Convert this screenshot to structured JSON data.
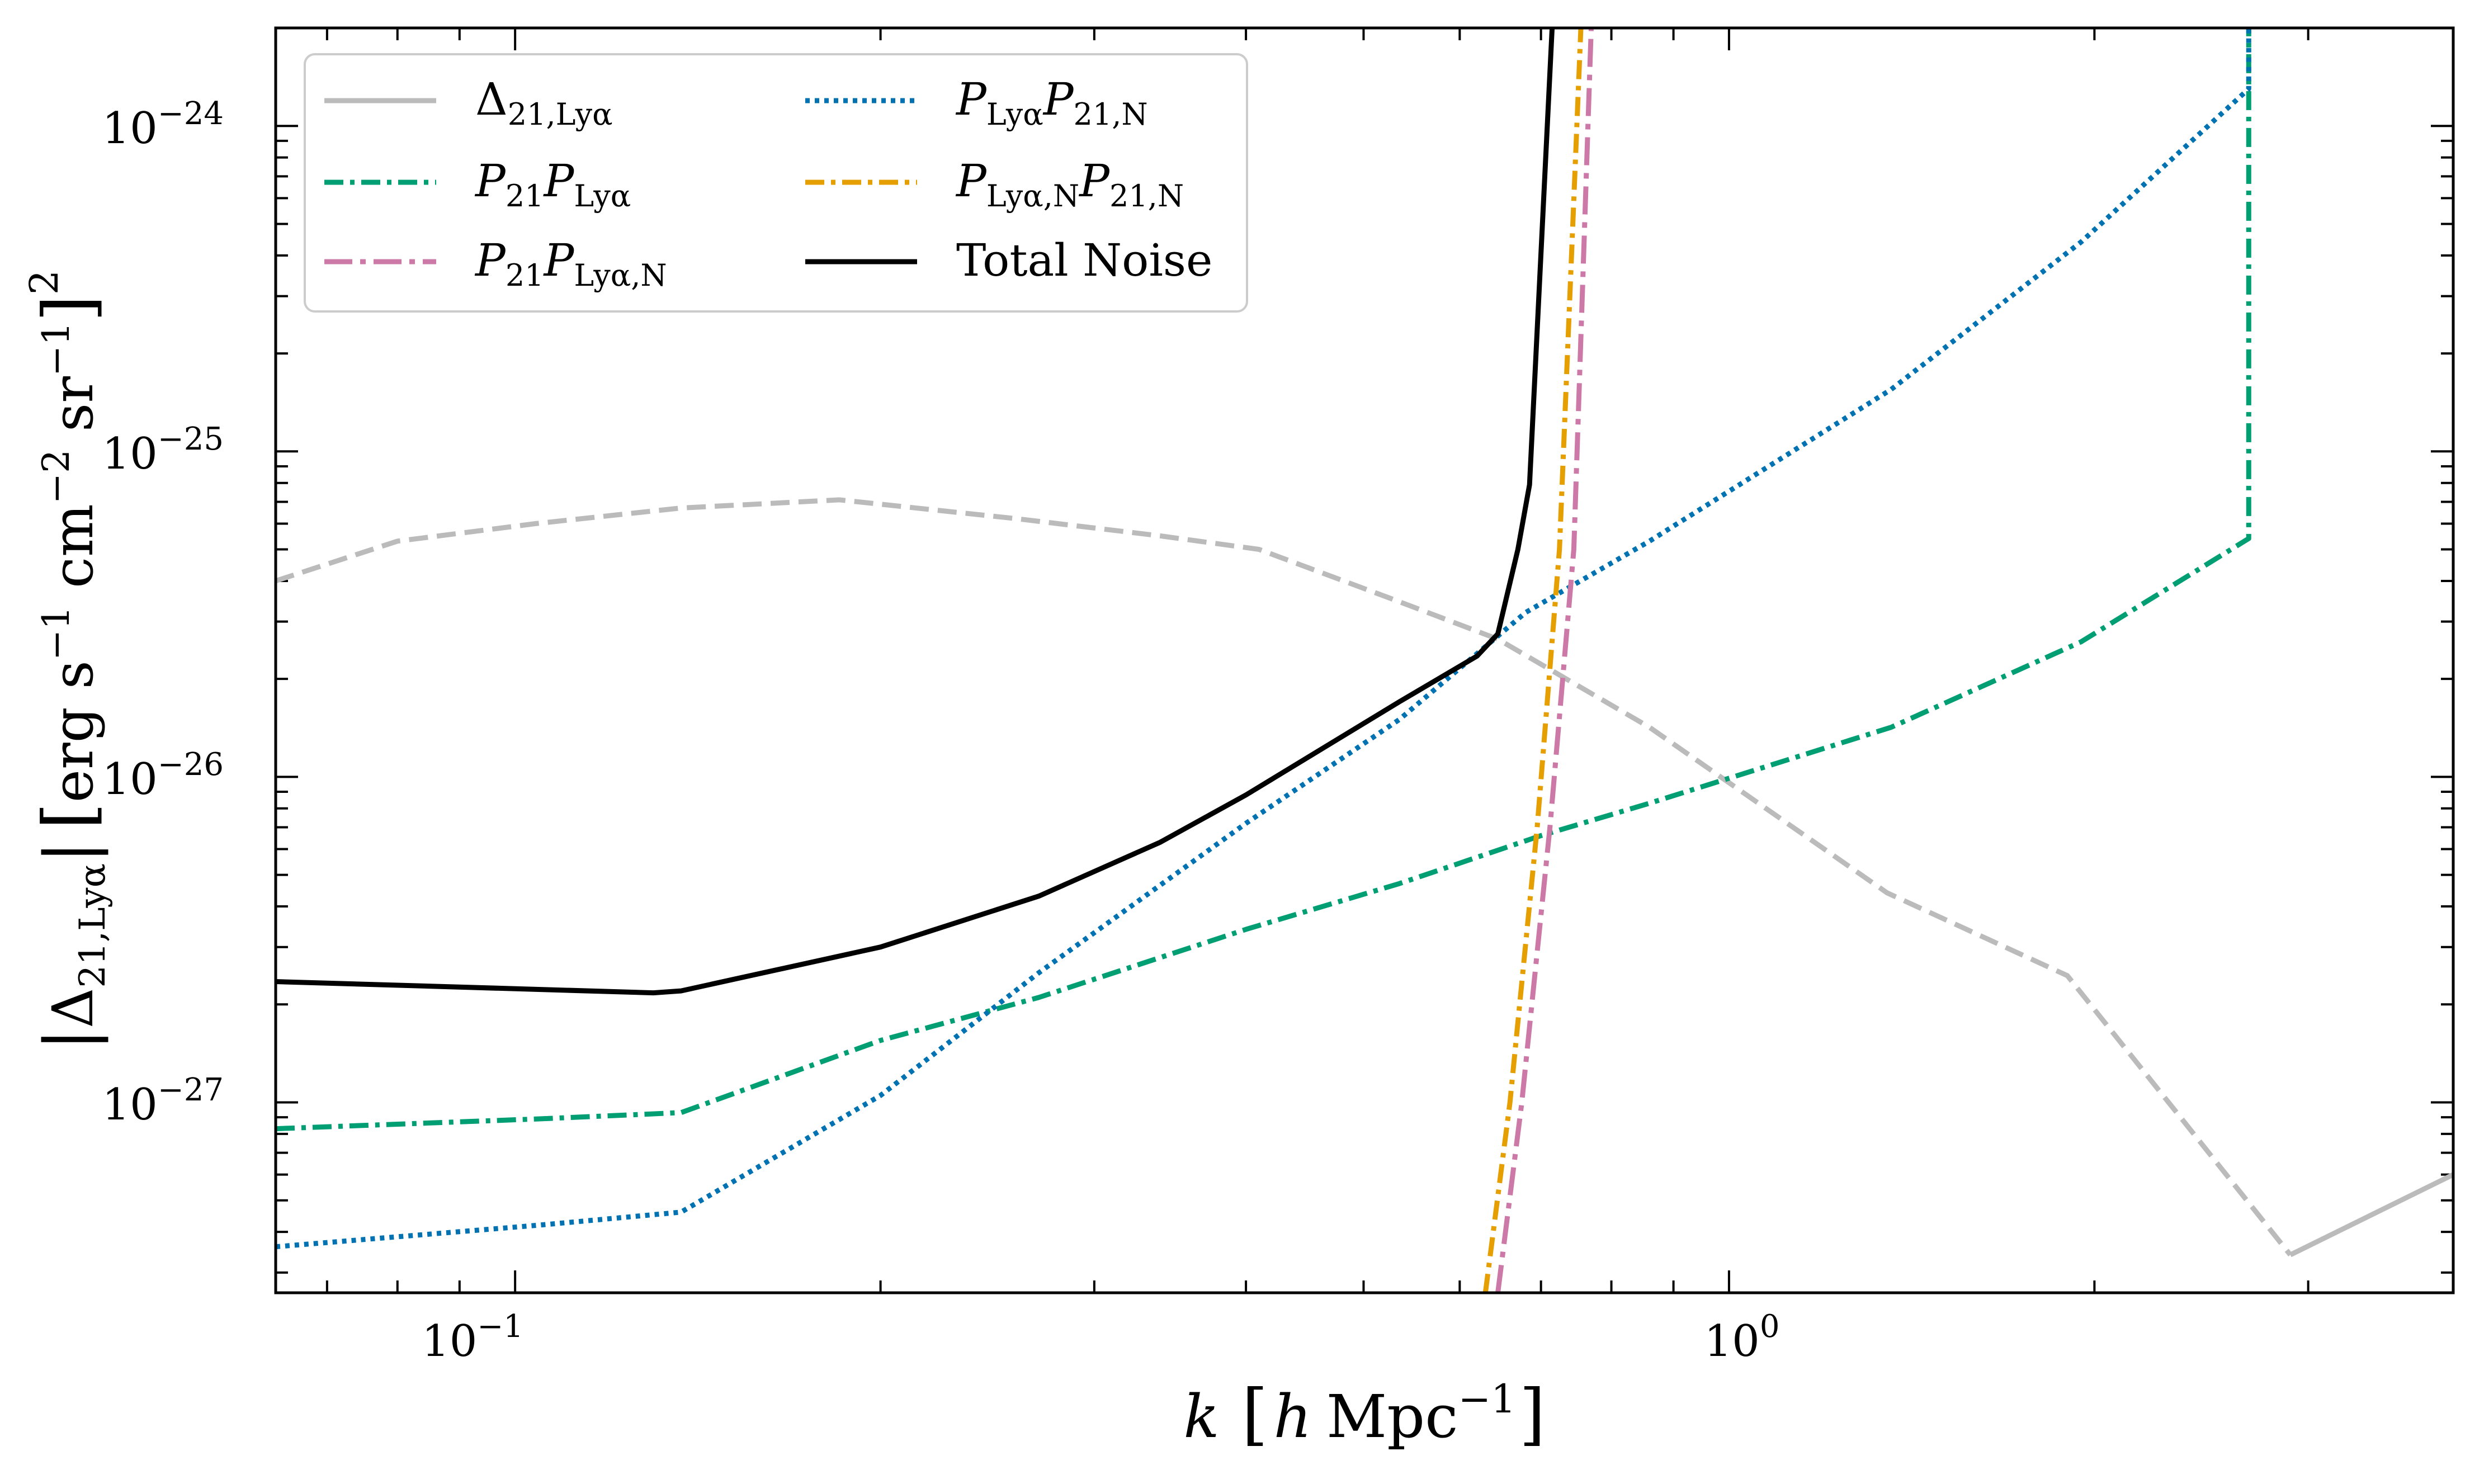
{
  "chart_data": {
    "type": "line",
    "xscale": "log",
    "yscale": "log",
    "xlim": [
      0.0635,
      3.95
    ],
    "ylim": [
      2.6e-28,
      2e-24
    ],
    "xlabel": "k [h Mpc^-1]",
    "ylabel": "|Δ21,Lyα| [erg s^-1 cm^-2 sr^-1]^2",
    "x_tick_labels": [
      {
        "value": 0.1,
        "base": "10",
        "exp": "−1"
      },
      {
        "value": 1.0,
        "base": "10",
        "exp": "0"
      }
    ],
    "y_tick_labels": [
      {
        "value": 1e-27,
        "base": "10",
        "exp": "−27"
      },
      {
        "value": 1e-26,
        "base": "10",
        "exp": "−26"
      },
      {
        "value": 1e-25,
        "base": "10",
        "exp": "−25"
      },
      {
        "value": 1e-24,
        "base": "10",
        "exp": "−24"
      }
    ],
    "legend_position": "top-left",
    "legend_columns": 2,
    "series": [
      {
        "name": "Δ21,Lyα",
        "key": "delta21lya",
        "color": "#bbbbbb",
        "dash": "solid",
        "segments": [
          {
            "dash": "dashed",
            "x": [
              0.0635,
              0.08,
              0.104,
              0.137,
              0.185,
              0.26,
              0.34,
              0.41,
              0.53,
              0.645,
              0.86,
              1.35,
              1.9,
              2.9
            ],
            "y": [
              4e-26,
              5.3e-26,
              6e-26,
              6.7e-26,
              7.1e-26,
              6.2e-26,
              5.5e-26,
              5e-26,
              3.5e-26,
              2.65e-26,
              1.42e-26,
              4.4e-27,
              2.45e-27,
              3.4e-28
            ]
          },
          {
            "dash": "solid",
            "x": [
              2.9,
              3.95
            ],
            "y": [
              3.4e-28,
              6e-28
            ]
          }
        ]
      },
      {
        "name": "P21PLyα",
        "key": "p21plya",
        "color": "#009e73",
        "dash": "dashdot",
        "x": [
          0.0635,
          0.105,
          0.137,
          0.2,
          0.27,
          0.4,
          0.535,
          0.7,
          0.86,
          1.36,
          1.95,
          2.68,
          2.68
        ],
        "y": [
          8.3e-28,
          8.9e-28,
          9.3e-28,
          1.55e-27,
          2.1e-27,
          3.4e-27,
          4.7e-27,
          6.6e-27,
          8.3e-27,
          1.42e-26,
          2.6e-26,
          5.4e-26,
          2e-24
        ]
      },
      {
        "name": "P21PLyα,N",
        "key": "p21plyan",
        "color": "#cc79a7",
        "dash": "longdashdot",
        "x": [
          0.645,
          0.675,
          0.712,
          0.745,
          0.77
        ],
        "y": [
          2.6e-28,
          1e-27,
          7e-27,
          5e-26,
          2e-24
        ]
      },
      {
        "name": "PLyαP21,N",
        "key": "plyap21n",
        "color": "#0072b2",
        "dash": "dotted",
        "x": [
          0.0635,
          0.105,
          0.137,
          0.2,
          0.27,
          0.4,
          0.535,
          0.68,
          0.86,
          1.36,
          1.95,
          2.68,
          2.68
        ],
        "y": [
          3.6e-28,
          4.2e-28,
          4.6e-28,
          1.05e-27,
          2.5e-27,
          7.2e-27,
          1.5e-26,
          3.2e-26,
          5.3e-26,
          1.55e-25,
          4.4e-25,
          1.3e-24,
          2e-24
        ]
      },
      {
        "name": "PLyα,NP21,N",
        "key": "plyanp21n",
        "color": "#e69f00",
        "dash": "dashdot",
        "x": [
          0.63,
          0.66,
          0.695,
          0.725,
          0.755
        ],
        "y": [
          2.6e-28,
          1e-27,
          7e-27,
          5e-26,
          2e-24
        ]
      },
      {
        "name": "Total Noise",
        "key": "total",
        "color": "#000000",
        "dash": "solid",
        "x": [
          0.0635,
          0.13,
          0.137,
          0.2,
          0.27,
          0.34,
          0.4,
          0.535,
          0.62,
          0.645,
          0.67,
          0.685,
          0.715
        ],
        "y": [
          2.35e-27,
          2.17e-27,
          2.2e-27,
          3e-27,
          4.3e-27,
          6.3e-27,
          8.8e-27,
          1.7e-26,
          2.35e-26,
          2.75e-26,
          5e-26,
          7.9e-26,
          2e-24
        ]
      }
    ]
  },
  "legend": {
    "col1": [
      {
        "key": "delta21lya",
        "main": "Δ",
        "sub": "21,Lyα",
        "main2": "",
        "sub2": ""
      },
      {
        "key": "p21plya",
        "main": "P",
        "sub": "21",
        "main2": "P",
        "sub2": "Lyα"
      },
      {
        "key": "p21plyan",
        "main": "P",
        "sub": "21",
        "main2": "P",
        "sub2": "Lyα,N"
      }
    ],
    "col2": [
      {
        "key": "plyap21n",
        "main": "P",
        "sub": "Lyα",
        "main2": "P",
        "sub2": "21,N"
      },
      {
        "key": "plyanp21n",
        "main": "P",
        "sub": "Lyα,N",
        "main2": "P",
        "sub2": "21,N"
      },
      {
        "key": "total",
        "text": "Total Noise"
      }
    ]
  },
  "labels": {
    "x_main": "k",
    "x_bracket_open": "[",
    "x_h": "h",
    "x_unit": "Mpc",
    "x_unit_exp": "−1",
    "x_bracket_close": "]",
    "y_abs_open": "|",
    "y_delta": "Δ",
    "y_delta_sub": "21,Lyα",
    "y_abs_close": "|",
    "y_bracket_open": "[",
    "y_erg": "erg s",
    "y_exp1": "−1",
    "y_cm": " cm",
    "y_exp2": "−2",
    "y_sr": " sr",
    "y_exp3": "−1",
    "y_bracket_close": "]",
    "y_power": "2"
  }
}
